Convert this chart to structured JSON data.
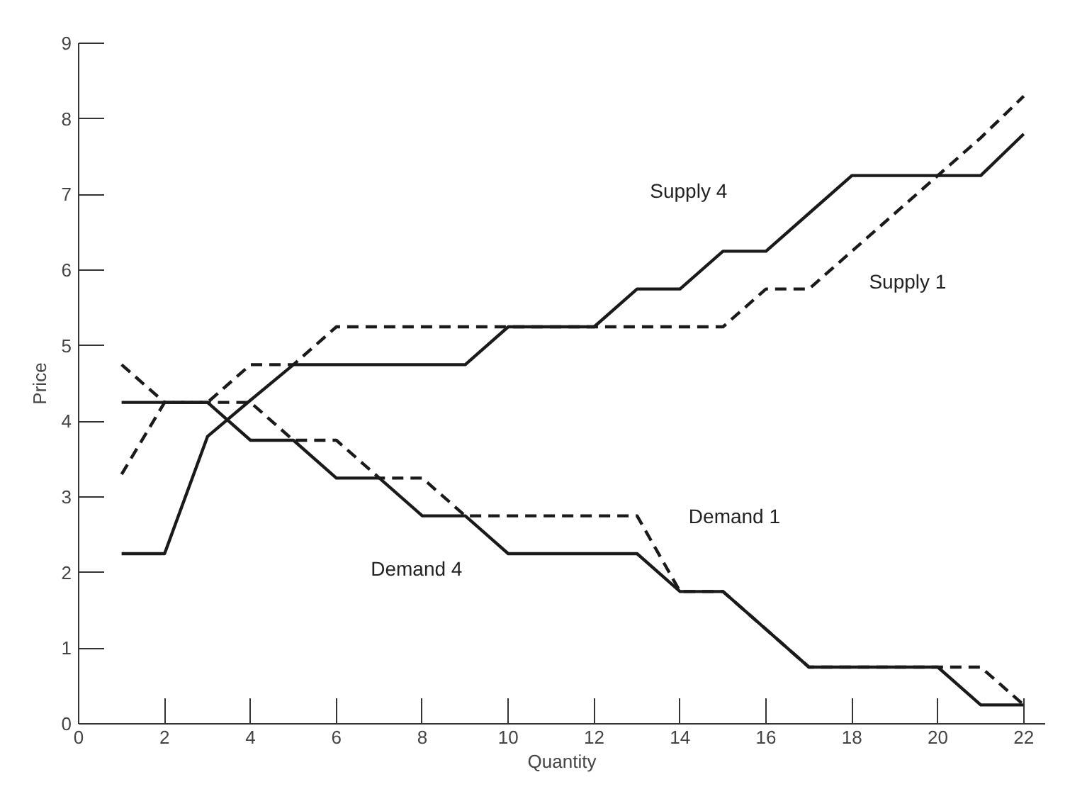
{
  "chart_data": {
    "type": "line",
    "xlabel": "Quantity",
    "ylabel": "Price",
    "x": [
      1,
      2,
      3,
      4,
      5,
      6,
      7,
      8,
      9,
      10,
      11,
      12,
      13,
      14,
      15,
      16,
      17,
      18,
      19,
      20,
      21,
      22
    ],
    "series": [
      {
        "name": "Supply 4",
        "color": "#1a1a1a",
        "line_style": "solid",
        "values": [
          2.25,
          2.25,
          3.8,
          4.28,
          4.75,
          4.75,
          4.75,
          4.75,
          4.75,
          5.25,
          5.25,
          5.25,
          5.75,
          5.75,
          6.25,
          6.25,
          6.75,
          7.25,
          7.25,
          7.25,
          7.25,
          7.8
        ]
      },
      {
        "name": "Supply 1",
        "color": "#1a1a1a",
        "line_style": "dashed",
        "values": [
          3.3,
          4.25,
          4.25,
          4.75,
          4.75,
          5.25,
          5.25,
          5.25,
          5.25,
          5.25,
          5.25,
          5.25,
          5.25,
          5.25,
          5.25,
          5.75,
          5.75,
          6.25,
          6.75,
          7.25,
          7.75,
          8.3
        ]
      },
      {
        "name": "Demand 4",
        "color": "#1a1a1a",
        "line_style": "solid",
        "values": [
          4.25,
          4.25,
          4.25,
          3.75,
          3.75,
          3.25,
          3.25,
          2.75,
          2.75,
          2.25,
          2.25,
          2.25,
          2.25,
          1.75,
          1.75,
          1.25,
          0.75,
          0.75,
          0.75,
          0.75,
          0.25,
          0.25
        ]
      },
      {
        "name": "Demand 1",
        "color": "#1a1a1a",
        "line_style": "dashed",
        "values": [
          4.75,
          4.25,
          4.25,
          4.25,
          3.75,
          3.75,
          3.25,
          3.25,
          2.75,
          2.75,
          2.75,
          2.75,
          2.75,
          1.75,
          1.75,
          1.25,
          0.75,
          0.75,
          0.75,
          0.75,
          0.75,
          0.25
        ]
      }
    ],
    "xlim": [
      0,
      22.5
    ],
    "ylim": [
      0,
      9
    ],
    "xticks": [
      0,
      2,
      4,
      6,
      8,
      10,
      12,
      14,
      16,
      18,
      20,
      22
    ],
    "yticks": [
      0,
      1,
      2,
      3,
      4,
      5,
      6,
      7,
      8,
      9
    ],
    "grid": false
  }
}
